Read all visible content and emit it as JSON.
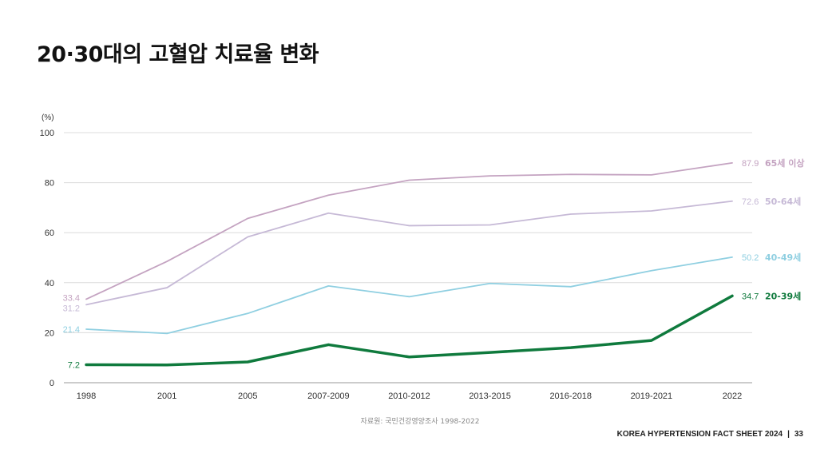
{
  "page": {
    "title": "20·30대의 고혈압 치료율 변화",
    "source": "자료원: 국민건강영양조사 1998-2022",
    "footer_left": "KOREA HYPERTENSION FACT SHEET 2024",
    "footer_sep": "|",
    "page_number": "33"
  },
  "chart_data": {
    "type": "line",
    "title": "20·30대의 고혈압 치료율 변화",
    "ylabel": "(%)",
    "xlabel": "",
    "ylim": [
      0,
      100
    ],
    "yticks": [
      0,
      20,
      40,
      60,
      80,
      100
    ],
    "grid": true,
    "categories": [
      "1998",
      "2001",
      "2005",
      "2007-2009",
      "2010-2012",
      "2013-2015",
      "2016-2018",
      "2019-2021",
      "2022"
    ],
    "series": [
      {
        "name": "65세 이상",
        "color": "#c4a3c1",
        "values": [
          33.4,
          48.5,
          65.7,
          75.0,
          81.0,
          82.7,
          83.3,
          83.1,
          87.9
        ],
        "start_label": "33.4",
        "end_label": "87.9"
      },
      {
        "name": "50-64세",
        "color": "#c6b9d6",
        "values": [
          31.2,
          38.0,
          58.3,
          67.8,
          62.8,
          63.1,
          67.4,
          68.7,
          72.6
        ],
        "start_label": "31.2",
        "end_label": "72.6"
      },
      {
        "name": "40-49세",
        "color": "#8fcfe1",
        "values": [
          21.4,
          19.7,
          27.7,
          38.7,
          34.4,
          39.7,
          38.4,
          44.8,
          50.2
        ],
        "start_label": "21.4",
        "end_label": "50.2"
      },
      {
        "name": "20-39세",
        "color": "#0f7a3d",
        "values": [
          7.2,
          7.1,
          8.3,
          15.2,
          10.3,
          12.1,
          14.0,
          16.9,
          34.7
        ],
        "start_label": "7.2",
        "end_label": "34.7",
        "emphasis": true
      }
    ]
  }
}
